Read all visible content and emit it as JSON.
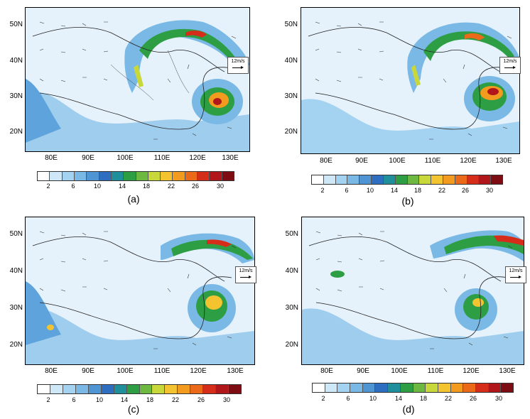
{
  "figure": {
    "colorbar": {
      "colors": [
        "#ffffff",
        "#cfe8f7",
        "#a4d3f2",
        "#7ab9e6",
        "#4f95d4",
        "#2d6ec0",
        "#1f8f9c",
        "#2e9e44",
        "#6cb840",
        "#c8d83a",
        "#f4c430",
        "#f39b1f",
        "#ea6a1a",
        "#d62d1a",
        "#b0161a",
        "#7d0d12"
      ],
      "labels": [
        "2",
        "6",
        "10",
        "14",
        "18",
        "22",
        "26",
        "30"
      ]
    },
    "lat_labels": [
      "50N",
      "40N",
      "30N",
      "20N"
    ],
    "lon_labels": [
      "80E",
      "90E",
      "100E",
      "110E",
      "120E",
      "130E"
    ],
    "wind_reference": "12m/s",
    "panels": [
      {
        "id": "a",
        "letter": "(a)"
      },
      {
        "id": "b",
        "letter": "(b)"
      },
      {
        "id": "c",
        "letter": "(c)"
      },
      {
        "id": "d",
        "letter": "(d)"
      }
    ]
  }
}
